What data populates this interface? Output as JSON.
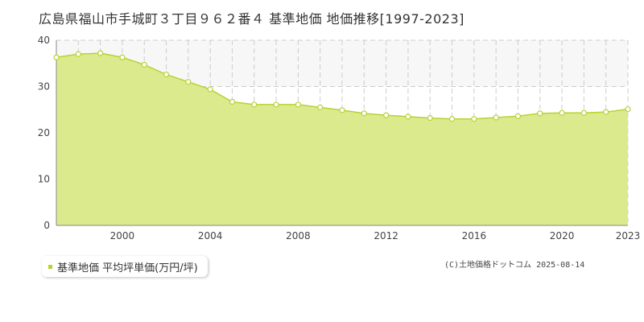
{
  "title": "広島県福山市手城町３丁目９６２番４ 基準地価 地価推移[1997-2023]",
  "legend_label": "基準地価 平均坪単価(万円/坪)",
  "copyright": "(C)土地価格ドットコム 2025-08-14",
  "colors": {
    "fill": "#dcea8e",
    "line": "#b5d334",
    "marker_stroke": "#b5d334",
    "grid": "#cccccc",
    "band": "#f7f7f7"
  },
  "chart_data": {
    "type": "area",
    "title": "広島県福山市手城町３丁目９６２番４ 基準地価 地価推移[1997-2023]",
    "xlabel": "",
    "ylabel": "",
    "x": [
      1997,
      1998,
      1999,
      2000,
      2001,
      2002,
      2003,
      2004,
      2005,
      2006,
      2007,
      2008,
      2009,
      2010,
      2011,
      2012,
      2013,
      2014,
      2015,
      2016,
      2017,
      2018,
      2019,
      2020,
      2021,
      2022,
      2023
    ],
    "series": [
      {
        "name": "基準地価 平均坪単価(万円/坪)",
        "values": [
          36.3,
          37.0,
          37.2,
          36.3,
          34.7,
          32.6,
          31.0,
          29.4,
          26.7,
          26.1,
          26.1,
          26.1,
          25.5,
          24.9,
          24.2,
          23.8,
          23.5,
          23.2,
          23.0,
          23.0,
          23.3,
          23.6,
          24.2,
          24.3,
          24.3,
          24.5,
          25.1
        ]
      }
    ],
    "x_ticks": [
      "2000",
      "2004",
      "2008",
      "2012",
      "2016",
      "2020",
      "2023"
    ],
    "y_ticks": [
      "0",
      "10",
      "20",
      "30",
      "40"
    ],
    "xlim": [
      1997,
      2023
    ],
    "ylim": [
      0,
      40
    ],
    "grid": true,
    "legend_position": "bottom-left"
  }
}
